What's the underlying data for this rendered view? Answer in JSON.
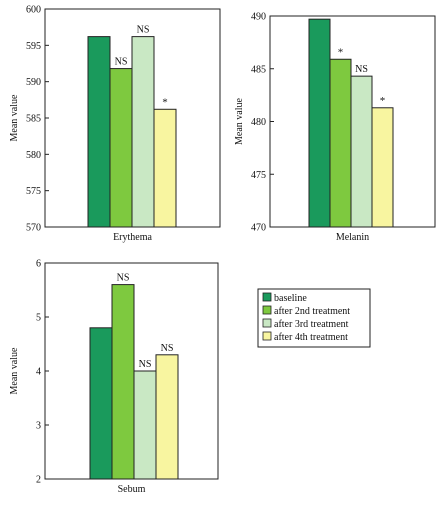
{
  "colors": {
    "series": [
      "#1a9a5c",
      "#7ec93f",
      "#c9e8c4",
      "#f8f5a0"
    ],
    "stroke": "#222222"
  },
  "legend": {
    "placement": "right of Sebum panel",
    "items": [
      "baseline",
      "after 2nd treatment",
      "after 3rd treatment",
      "after 4th treatment"
    ]
  },
  "chart_data": [
    {
      "type": "bar",
      "xlabel": "Erythema",
      "ylabel": "Mean value",
      "ylim": [
        570,
        600
      ],
      "yticks": [
        "570",
        "575",
        "580",
        "585",
        "590",
        "595",
        "600"
      ],
      "categories": [
        "baseline",
        "after 2nd treatment",
        "after 3rd treatment",
        "after 4th treatment"
      ],
      "values": [
        596.2,
        591.8,
        596.2,
        586.2
      ],
      "annotations": [
        "",
        "NS",
        "NS",
        "*"
      ]
    },
    {
      "type": "bar",
      "xlabel": "Melanin",
      "ylabel": "Mean value",
      "ylim": [
        470,
        490
      ],
      "yticks": [
        "470",
        "475",
        "480",
        "485",
        "490"
      ],
      "categories": [
        "baseline",
        "after 2nd treatment",
        "after 3rd treatment",
        "after 4th treatment"
      ],
      "values": [
        489.7,
        485.9,
        484.3,
        481.3
      ],
      "annotations": [
        "",
        "*",
        "NS",
        "*"
      ]
    },
    {
      "type": "bar",
      "xlabel": "Sebum",
      "ylabel": "Mean value",
      "ylim": [
        2,
        6
      ],
      "yticks": [
        "2",
        "3",
        "4",
        "5",
        "6"
      ],
      "categories": [
        "baseline",
        "after 2nd treatment",
        "after 3rd treatment",
        "after 4th treatment"
      ],
      "values": [
        4.8,
        5.6,
        4.0,
        4.3
      ],
      "annotations": [
        "",
        "NS",
        "NS",
        "NS"
      ]
    }
  ]
}
